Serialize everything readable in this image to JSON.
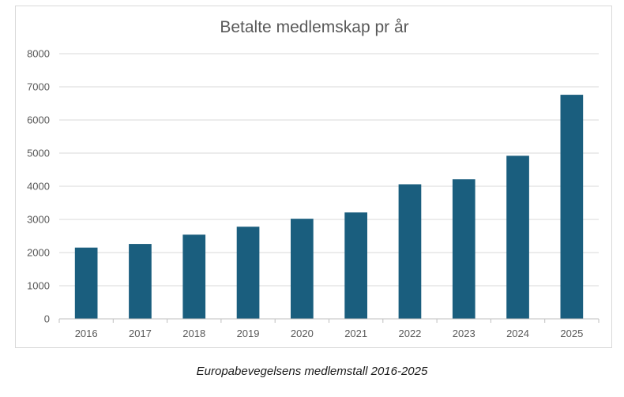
{
  "chart_data": {
    "type": "bar",
    "title": "Betalte medlemskap pr år",
    "xlabel": "",
    "ylabel": "",
    "categories": [
      "2016",
      "2017",
      "2018",
      "2019",
      "2020",
      "2021",
      "2022",
      "2023",
      "2024",
      "2025"
    ],
    "values": [
      2150,
      2260,
      2540,
      2780,
      3020,
      3210,
      4060,
      4210,
      4920,
      6760
    ],
    "ylim": [
      0,
      8000
    ],
    "yticks": [
      "0",
      "1000",
      "2000",
      "3000",
      "4000",
      "5000",
      "6000",
      "7000",
      "8000"
    ],
    "grid": true,
    "legend": "none",
    "bar_color": "#1a5e7e",
    "grid_color": "#d9d9d9",
    "text_color": "#595959"
  },
  "caption": "Europabevegelsens medlemstall 2016-2025"
}
